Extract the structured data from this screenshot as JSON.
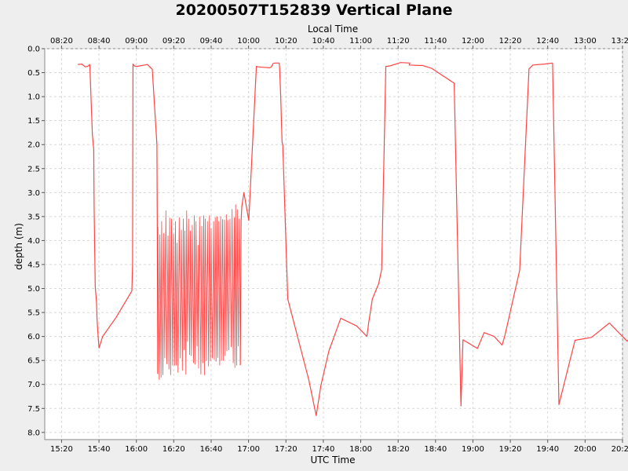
{
  "chart_data": {
    "type": "line",
    "title": "20200507T152839 Vertical Plane",
    "xlabel": "UTC Time",
    "x2label": "Local Time",
    "ylabel": "depth (m)",
    "x_units": "minutes since 15:20 UTC",
    "xlim": [
      -9,
      300
    ],
    "ylim": [
      8.15,
      0
    ],
    "y_inverted": true,
    "grid": true,
    "series_color": "#ff4444",
    "x_ticks": [
      {
        "value": 0,
        "label": "15:20"
      },
      {
        "value": 20,
        "label": "15:40"
      },
      {
        "value": 40,
        "label": "16:00"
      },
      {
        "value": 60,
        "label": "16:20"
      },
      {
        "value": 80,
        "label": "16:40"
      },
      {
        "value": 100,
        "label": "17:00"
      },
      {
        "value": 120,
        "label": "17:20"
      },
      {
        "value": 140,
        "label": "17:40"
      },
      {
        "value": 160,
        "label": "18:00"
      },
      {
        "value": 180,
        "label": "18:20"
      },
      {
        "value": 200,
        "label": "18:40"
      },
      {
        "value": 220,
        "label": "19:00"
      },
      {
        "value": 240,
        "label": "19:20"
      },
      {
        "value": 260,
        "label": "19:40"
      },
      {
        "value": 280,
        "label": "20:00"
      },
      {
        "value": 300,
        "label": "20:20"
      }
    ],
    "x2_ticks": [
      {
        "value": 0,
        "label": "08:20"
      },
      {
        "value": 20,
        "label": "08:40"
      },
      {
        "value": 40,
        "label": "09:00"
      },
      {
        "value": 60,
        "label": "09:20"
      },
      {
        "value": 80,
        "label": "09:40"
      },
      {
        "value": 100,
        "label": "10:00"
      },
      {
        "value": 120,
        "label": "10:20"
      },
      {
        "value": 140,
        "label": "10:40"
      },
      {
        "value": 160,
        "label": "11:00"
      },
      {
        "value": 180,
        "label": "11:20"
      },
      {
        "value": 200,
        "label": "11:40"
      },
      {
        "value": 220,
        "label": "12:00"
      },
      {
        "value": 240,
        "label": "12:20"
      },
      {
        "value": 260,
        "label": "12:40"
      },
      {
        "value": 280,
        "label": "13:00"
      },
      {
        "value": 300,
        "label": "13:20"
      }
    ],
    "y_ticks": [
      {
        "value": 0,
        "label": "0.0"
      },
      {
        "value": 0.5,
        "label": "0.5"
      },
      {
        "value": 1,
        "label": "1.0"
      },
      {
        "value": 1.5,
        "label": "1.5"
      },
      {
        "value": 2,
        "label": "2.0"
      },
      {
        "value": 2.5,
        "label": "2.5"
      },
      {
        "value": 3,
        "label": "3.0"
      },
      {
        "value": 3.5,
        "label": "3.5"
      },
      {
        "value": 4,
        "label": "4.0"
      },
      {
        "value": 4.5,
        "label": "4.5"
      },
      {
        "value": 5,
        "label": "5.0"
      },
      {
        "value": 5.5,
        "label": "5.5"
      },
      {
        "value": 6,
        "label": "6.0"
      },
      {
        "value": 6.5,
        "label": "6.5"
      },
      {
        "value": 7,
        "label": "7.0"
      },
      {
        "value": 7.5,
        "label": "7.5"
      },
      {
        "value": 8,
        "label": "8.0"
      }
    ],
    "series": [
      {
        "x": [
          8.6,
          10.8,
          12.7,
          13.9,
          15.1,
          16.5,
          17.2,
          17.4,
          18.0,
          18.7,
          18.9,
          19.3,
          20.0,
          22.0,
          29.2,
          37.6,
          38.0,
          38.2,
          39.0,
          40.3,
          45.9,
          48.5,
          51.0,
          51.3,
          51.4
        ],
        "y": [
          0.33,
          0.32,
          0.38,
          0.37,
          0.33,
          1.8,
          2.1,
          3.3,
          4.95,
          5.3,
          5.6,
          5.85,
          6.24,
          6.0,
          5.6,
          5.05,
          4.5,
          0.32,
          0.36,
          0.37,
          0.33,
          0.43,
          2.0,
          4.6,
          6.78
        ],
        "stroke_width": 1.2
      },
      {
        "x": [
          51.4,
          51.5,
          52.2,
          52.6,
          53.2,
          53.5,
          54.2,
          54.7,
          55.2,
          55.8,
          56.3,
          56.9,
          57.4,
          57.8,
          58.3,
          58.8,
          59.4,
          59.9,
          60.4,
          60.9,
          61.3,
          61.8,
          62.3,
          62.9,
          63.5,
          64.1,
          64.6,
          65.1,
          65.6,
          66.0,
          66.5,
          66.9,
          67.4,
          67.9,
          68.5,
          68.9,
          69.4,
          69.9,
          70.5,
          71.0,
          71.3,
          71.9,
          72.5,
          73.0,
          73.3,
          73.8,
          74.5,
          75.0,
          75.5,
          76.0,
          76.4,
          76.8,
          77.5,
          78.0,
          78.6,
          79.1,
          79.6,
          80.0,
          80.6,
          81.3,
          81.7,
          82.2,
          82.6,
          83.1,
          83.5,
          84.1,
          84.6,
          85.1,
          85.5,
          86.1,
          86.6,
          87.1,
          87.5,
          88.1,
          88.4,
          88.9,
          89.4,
          90.1,
          90.7,
          91.2,
          91.8,
          92.4,
          92.7,
          93.1,
          93.6,
          94.0,
          94.5,
          95.0,
          95.6
        ],
        "y": [
          6.78,
          3.72,
          6.9,
          3.88,
          6.85,
          3.6,
          6.8,
          3.85,
          6.45,
          3.38,
          6.57,
          3.9,
          6.68,
          3.53,
          6.8,
          3.55,
          6.6,
          3.87,
          6.6,
          3.6,
          6.6,
          4.05,
          6.75,
          3.52,
          6.45,
          3.78,
          6.71,
          3.55,
          6.28,
          3.8,
          6.79,
          3.38,
          6.1,
          3.55,
          6.38,
          3.8,
          6.4,
          3.68,
          6.55,
          3.48,
          6.58,
          3.6,
          6.2,
          4.1,
          6.66,
          3.5,
          6.79,
          3.7,
          6.55,
          3.48,
          6.8,
          3.55,
          6.5,
          3.6,
          6.62,
          3.48,
          6.5,
          3.75,
          6.45,
          3.6,
          6.48,
          3.52,
          6.52,
          3.5,
          6.44,
          3.6,
          6.6,
          3.5,
          6.5,
          3.56,
          6.5,
          3.57,
          6.4,
          3.46,
          6.3,
          3.58,
          6.28,
          3.55,
          6.22,
          3.35,
          6.55,
          3.52,
          6.65,
          3.25,
          6.6,
          3.36,
          6.2,
          3.55,
          6.6
        ],
        "stroke_width": 0.8
      },
      {
        "x": [
          95.6,
          96.0,
          96.4,
          97.5,
          100.1,
          104.2,
          105.1,
          108.6,
          111.2,
          112.2,
          113.1,
          114.2,
          116.4,
          116.6,
          117.2,
          117.5,
          117.9,
          118.3,
          121.0,
          132.2,
          136.2,
          138.7,
          143.0,
          149.3,
          157.8,
          163.3,
          164.3,
          166.2,
          169.6,
          171.2,
          173.4,
          175.6,
          181.3,
          186.3,
          185.9,
          190.5,
          193.1,
          198.0,
          210.0,
          213.6,
          214.7,
          222.4,
          226.0,
          231.4,
          235.6,
          237.0,
          245.0,
          250.0,
          252.1,
          258.2,
          262.6,
          266.0,
          274.6,
          283.4,
          293.0,
          302.5,
          309.2,
          310.8,
          312.1,
          316.5
        ],
        "y": [
          6.6,
          3.6,
          3.3,
          3.0,
          3.58,
          0.37,
          0.38,
          0.39,
          0.4,
          0.38,
          0.31,
          0.3,
          0.3,
          0.4,
          1.0,
          1.4,
          1.95,
          2.0,
          5.22,
          6.9,
          7.65,
          7.02,
          6.3,
          5.62,
          5.78,
          6.0,
          5.7,
          5.22,
          4.9,
          4.6,
          0.37,
          0.36,
          0.29,
          0.3,
          0.34,
          0.35,
          0.35,
          0.41,
          0.72,
          7.45,
          6.07,
          6.25,
          5.92,
          6.0,
          6.18,
          6.0,
          4.62,
          0.42,
          0.34,
          0.32,
          0.3,
          7.42,
          6.08,
          6.02,
          5.72,
          6.1,
          5.75,
          4.25,
          0.49,
          0.32
        ],
        "stroke_width": 1.2
      }
    ]
  }
}
